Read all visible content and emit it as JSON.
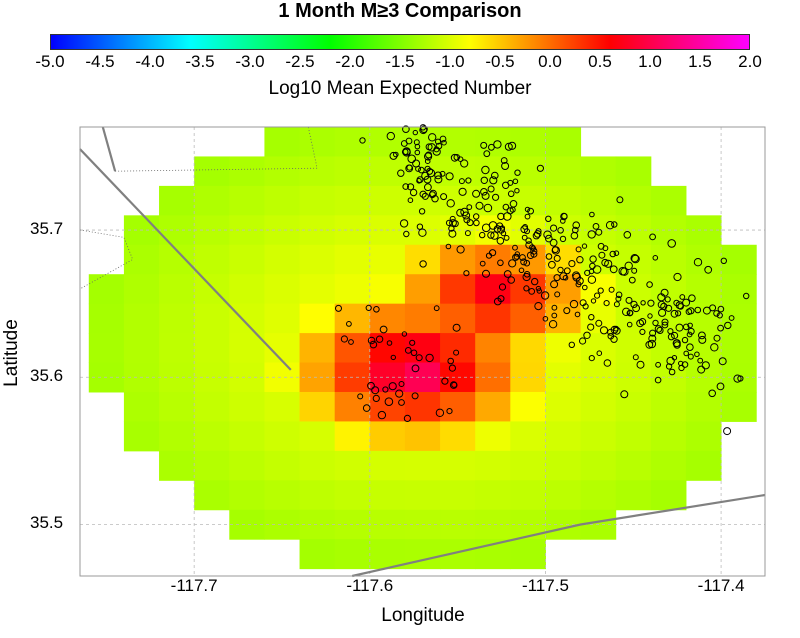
{
  "chart_data": {
    "type": "heatmap",
    "title": "1 Month M≥3 Comparison",
    "colorbar": {
      "label": "Log10 Mean Expected Number",
      "range": [
        -5.0,
        2.0
      ],
      "ticks": [
        "-5.0",
        "-4.5",
        "-4.0",
        "-3.5",
        "-3.0",
        "-2.5",
        "-2.0",
        "-1.5",
        "-1.0",
        "-0.5",
        "0.0",
        "0.5",
        "1.0",
        "1.5",
        "2.0"
      ],
      "colormap": [
        "#0000ff",
        "#00ffff",
        "#00ff00",
        "#ffff00",
        "#ff0000",
        "#ff00ff"
      ]
    },
    "xlabel": "Longitude",
    "ylabel": "Latitude",
    "xlim": [
      -117.765,
      -117.375
    ],
    "ylim": [
      35.465,
      35.77
    ],
    "xticks": [
      {
        "value": -117.7,
        "label": "-117.7"
      },
      {
        "value": -117.6,
        "label": "-117.6"
      },
      {
        "value": -117.5,
        "label": "-117.5"
      },
      {
        "value": -117.4,
        "label": "-117.4"
      }
    ],
    "yticks": [
      {
        "value": 35.5,
        "label": "35.5"
      },
      {
        "value": 35.6,
        "label": "35.6"
      },
      {
        "value": 35.7,
        "label": "35.7"
      }
    ],
    "grid": true,
    "heatmap": {
      "lon_centers": [
        -117.75,
        -117.73,
        -117.71,
        -117.69,
        -117.67,
        -117.65,
        -117.63,
        -117.61,
        -117.59,
        -117.57,
        -117.55,
        -117.53,
        -117.51,
        -117.49,
        -117.47,
        -117.45,
        -117.43,
        -117.41,
        -117.39
      ],
      "lat_centers": [
        35.76,
        35.74,
        35.72,
        35.7,
        35.68,
        35.66,
        35.64,
        35.62,
        35.6,
        35.58,
        35.56,
        35.54,
        35.52,
        35.5,
        35.48,
        35.46
      ],
      "value_model": {
        "peak": [
          {
            "lon": -117.575,
            "lat": 35.605,
            "value": 1.3
          },
          {
            "lon": -117.53,
            "lat": 35.655,
            "value": 0.9
          }
        ],
        "floor": -1.3,
        "note_units": "log10"
      }
    },
    "earthquakes": {
      "lon_range": [
        -117.66,
        -117.385
      ],
      "lat_range": [
        35.53,
        35.77
      ],
      "count": 420
    }
  }
}
